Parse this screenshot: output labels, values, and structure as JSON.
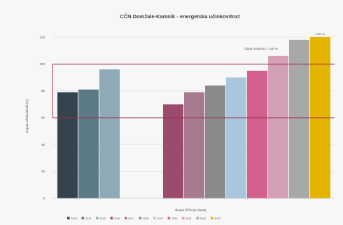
{
  "chart_data": {
    "type": "bar",
    "title": "CČN Domžale-Kamnik - energetska učinkovitost",
    "ylabel": "stopnja učinkovitosti [%]",
    "xlabel": "skupaj čiščenje skupaj",
    "x_tick_label": "",
    "ylim": [
      0,
      120
    ],
    "yticks": [
      0,
      20,
      40,
      60,
      80,
      100,
      120
    ],
    "grid": true,
    "legend_position": "bottom",
    "annotation": "Ciljna vrednost = 100 %",
    "reference_lines": [
      100,
      60
    ],
    "groups": [
      {
        "series": [
          "2013",
          "2014",
          "2015"
        ]
      },
      {
        "series": [
          "2016",
          "2017",
          "2018",
          "2019",
          "2020",
          "2021",
          "2022",
          "2023"
        ]
      }
    ],
    "series": [
      {
        "name": "2013",
        "value": 79,
        "color": "#34434d"
      },
      {
        "name": "2014",
        "value": 81,
        "color": "#5c7a86"
      },
      {
        "name": "2015",
        "value": 96,
        "color": "#8eaab8"
      },
      {
        "name": "2016",
        "value": 70,
        "color": "#9c4a6e"
      },
      {
        "name": "2017",
        "value": 79,
        "color": "#a87a90"
      },
      {
        "name": "2018",
        "value": 84,
        "color": "#8a8a8a"
      },
      {
        "name": "2019",
        "value": 90,
        "color": "#a8c6dc"
      },
      {
        "name": "2020",
        "value": 95,
        "color": "#d45f8e"
      },
      {
        "name": "2021",
        "value": 106,
        "color": "#d3a0b8"
      },
      {
        "name": "2022",
        "value": 118,
        "color": "#a8a8a8"
      },
      {
        "name": "2023",
        "value": 120,
        "color": "#e5b400",
        "label": "120 %"
      }
    ]
  }
}
